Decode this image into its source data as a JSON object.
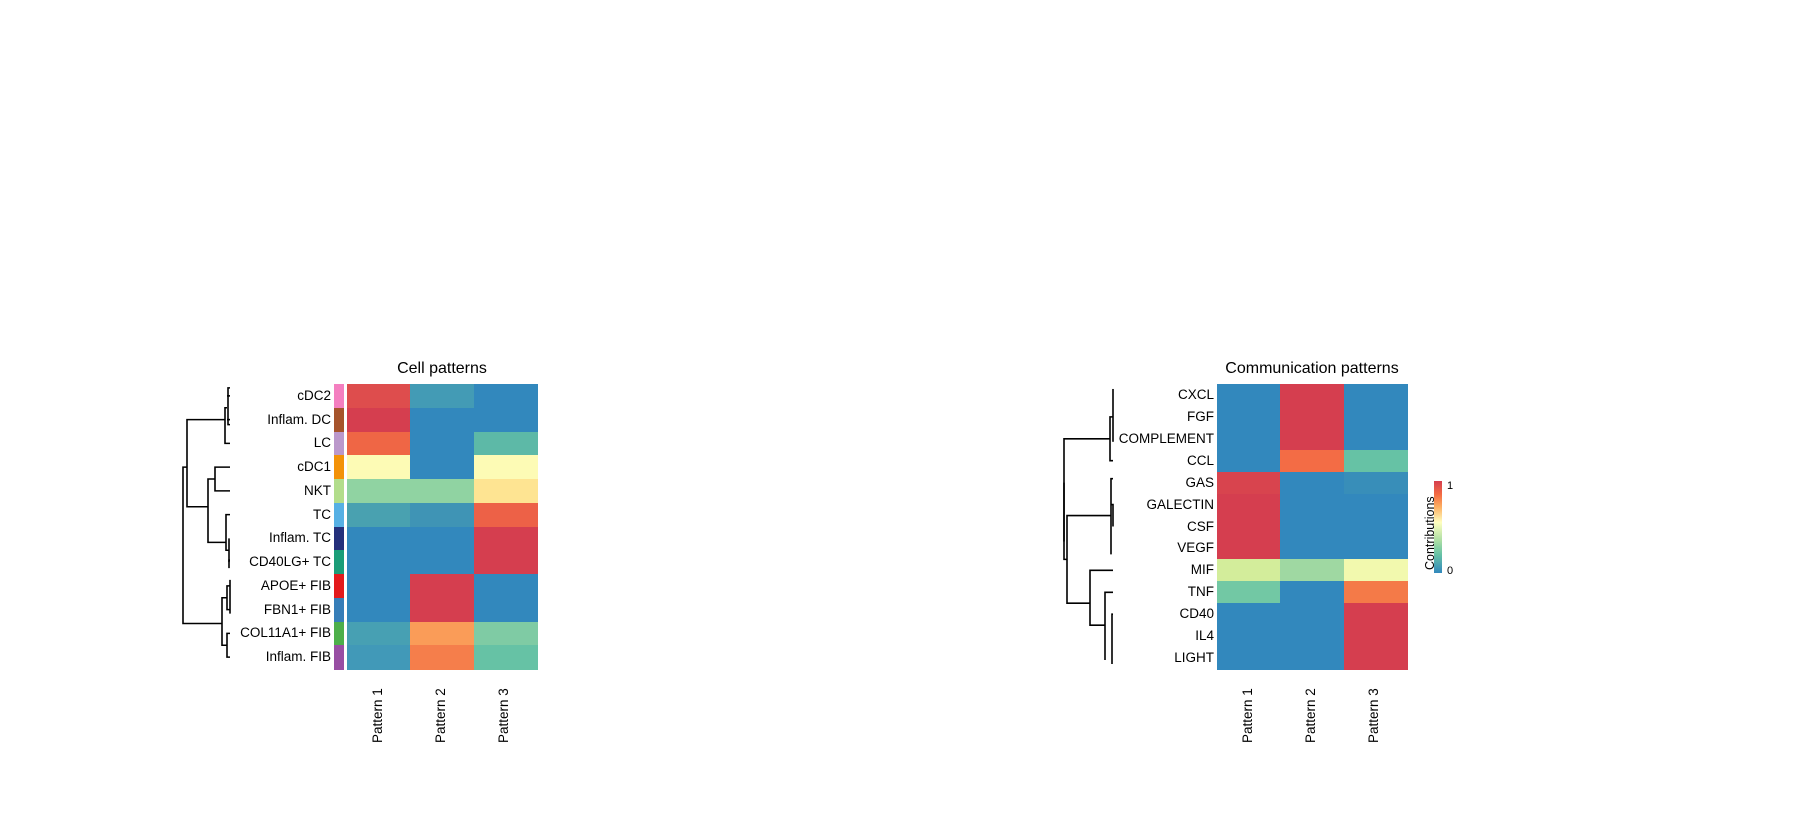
{
  "chart_data": [
    {
      "type": "heatmap",
      "title": "Cell patterns",
      "rows": [
        "cDC2",
        "Inflam. DC",
        "LC",
        "cDC1",
        "NKT",
        "TC",
        "Inflam. TC",
        "CD40LG+ TC",
        "APOE+ FIB",
        "FBN1+ FIB",
        "COL11A1+ FIB",
        "Inflam. FIB"
      ],
      "columns": [
        "Pattern 1",
        "Pattern 2",
        "Pattern 3"
      ],
      "row_annotation_colors": [
        "#f47fc0",
        "#a6542c",
        "#bb98cb",
        "#f39208",
        "#b2dd8b",
        "#56b0e4",
        "#24307b",
        "#1b9d78",
        "#e31a1c",
        "#377eb8",
        "#4daf4a",
        "#984ea3"
      ],
      "values": [
        [
          0.95,
          0.12,
          0.0
        ],
        [
          1.0,
          0.0,
          0.0
        ],
        [
          0.88,
          0.0,
          0.22
        ],
        [
          0.55,
          0.0,
          0.55
        ],
        [
          0.32,
          0.32,
          0.62
        ],
        [
          0.1,
          0.08,
          0.88
        ],
        [
          0.0,
          0.0,
          1.0
        ],
        [
          0.0,
          0.0,
          1.0
        ],
        [
          0.0,
          1.0,
          0.0
        ],
        [
          0.0,
          1.0,
          0.0
        ],
        [
          0.1,
          0.78,
          0.28
        ],
        [
          0.08,
          0.82,
          0.22
        ]
      ],
      "cell_colors": [
        [
          "#de4d4d",
          "#439bb5",
          "#3288bd"
        ],
        [
          "#d53e4f",
          "#3288bd",
          "#3288bd"
        ],
        [
          "#ef6645",
          "#3288bd",
          "#5db9a7"
        ],
        [
          "#fdfbb5",
          "#3288bd",
          "#fdfbb5"
        ],
        [
          "#90d3a2",
          "#90d3a2",
          "#fee492"
        ],
        [
          "#49a1b0",
          "#3f94b5",
          "#ed6147"
        ],
        [
          "#3288bd",
          "#3288bd",
          "#d53e4f"
        ],
        [
          "#3288bd",
          "#3288bd",
          "#d53e4f"
        ],
        [
          "#3288bd",
          "#d53e4f",
          "#3288bd"
        ],
        [
          "#3288bd",
          "#d53e4f",
          "#3288bd"
        ],
        [
          "#47a0b3",
          "#fa9c58",
          "#7fcba4"
        ],
        [
          "#4199b8",
          "#f57e4b",
          "#66c2a5"
        ]
      ],
      "dendrogram": "row clustering, 3 main clusters (DC group, T/NK group, FIB group)"
    },
    {
      "type": "heatmap",
      "title": "Communication patterns",
      "rows": [
        "CXCL",
        "FGF",
        "COMPLEMENT",
        "CCL",
        "GAS",
        "GALECTIN",
        "CSF",
        "VEGF",
        "MIF",
        "TNF",
        "CD40",
        "IL4",
        "LIGHT"
      ],
      "columns": [
        "Pattern 1",
        "Pattern 2",
        "Pattern 3"
      ],
      "values": [
        [
          0.0,
          1.0,
          0.0
        ],
        [
          0.0,
          1.0,
          0.0
        ],
        [
          0.0,
          1.0,
          0.0
        ],
        [
          0.0,
          0.88,
          0.25
        ],
        [
          0.97,
          0.0,
          0.05
        ],
        [
          1.0,
          0.0,
          0.0
        ],
        [
          1.0,
          0.0,
          0.0
        ],
        [
          1.0,
          0.0,
          0.0
        ],
        [
          0.45,
          0.35,
          0.52
        ],
        [
          0.25,
          0.0,
          0.85
        ],
        [
          0.0,
          0.0,
          1.0
        ],
        [
          0.0,
          0.0,
          1.0
        ],
        [
          0.0,
          0.0,
          1.0
        ]
      ],
      "cell_colors": [
        [
          "#3288bd",
          "#d53e4f",
          "#3288bd"
        ],
        [
          "#3288bd",
          "#d53e4f",
          "#3288bd"
        ],
        [
          "#3288bd",
          "#d53e4f",
          "#3288bd"
        ],
        [
          "#3288bd",
          "#f36c45",
          "#66c2a5"
        ],
        [
          "#d8444e",
          "#3288bd",
          "#388eb9"
        ],
        [
          "#d53e4f",
          "#3288bd",
          "#3288bd"
        ],
        [
          "#d53e4f",
          "#3288bd",
          "#3288bd"
        ],
        [
          "#d53e4f",
          "#3288bd",
          "#3288bd"
        ],
        [
          "#d3ed9b",
          "#9fd8a2",
          "#f2f9ae"
        ],
        [
          "#72c8a4",
          "#3288bd",
          "#f47a48"
        ],
        [
          "#3288bd",
          "#3288bd",
          "#d53e4f"
        ],
        [
          "#3288bd",
          "#3288bd",
          "#d53e4f"
        ],
        [
          "#3288bd",
          "#3288bd",
          "#d53e4f"
        ]
      ],
      "legend": {
        "title": "Contributions",
        "max_label": "1",
        "min_label": "0",
        "colormap": "Spectral (reversed)"
      },
      "dendrogram": "row clustering, 2 main clusters"
    }
  ],
  "left": {
    "title": "Cell patterns"
  },
  "right": {
    "title": "Communication patterns",
    "legend_title": "Contributions",
    "legend_max": "1",
    "legend_min": "0"
  }
}
